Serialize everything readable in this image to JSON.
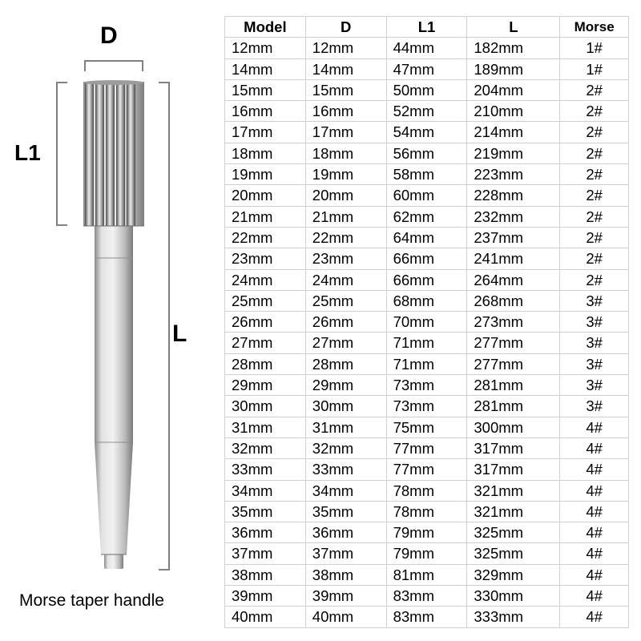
{
  "diagram": {
    "d_label": "D",
    "l1_label": "L1",
    "l_label": "L",
    "caption": "Morse taper handle",
    "colors": {
      "metal_light": "#d8d8d8",
      "metal_mid": "#b8b8b8",
      "metal_dark": "#808080",
      "flute_dark": "#5a5a5a",
      "flute_light": "#e8e8e8",
      "bracket": "#808080"
    }
  },
  "table": {
    "columns": [
      "Model",
      "D",
      "L1",
      "L",
      "Morse"
    ],
    "column_widths_pct": [
      20,
      20,
      20,
      23,
      17
    ],
    "header_fontsize": 18.5,
    "cell_fontsize": 18.5,
    "border_color": "#d0d0d0",
    "background_color": "#ffffff",
    "text_color": "#000000",
    "rows": [
      [
        "12mm",
        "12mm",
        "44mm",
        "182mm",
        "1#"
      ],
      [
        "14mm",
        "14mm",
        "47mm",
        "189mm",
        "1#"
      ],
      [
        "15mm",
        "15mm",
        "50mm",
        "204mm",
        "2#"
      ],
      [
        "16mm",
        "16mm",
        "52mm",
        "210mm",
        "2#"
      ],
      [
        "17mm",
        "17mm",
        "54mm",
        "214mm",
        "2#"
      ],
      [
        "18mm",
        "18mm",
        "56mm",
        "219mm",
        "2#"
      ],
      [
        "19mm",
        "19mm",
        "58mm",
        "223mm",
        "2#"
      ],
      [
        "20mm",
        "20mm",
        "60mm",
        "228mm",
        "2#"
      ],
      [
        "21mm",
        "21mm",
        "62mm",
        "232mm",
        "2#"
      ],
      [
        "22mm",
        "22mm",
        "64mm",
        "237mm",
        "2#"
      ],
      [
        "23mm",
        "23mm",
        "66mm",
        "241mm",
        "2#"
      ],
      [
        "24mm",
        "24mm",
        "66mm",
        "264mm",
        "2#"
      ],
      [
        "25mm",
        "25mm",
        "68mm",
        "268mm",
        "3#"
      ],
      [
        "26mm",
        "26mm",
        "70mm",
        "273mm",
        "3#"
      ],
      [
        "27mm",
        "27mm",
        "71mm",
        "277mm",
        "3#"
      ],
      [
        "28mm",
        "28mm",
        "71mm",
        "277mm",
        "3#"
      ],
      [
        "29mm",
        "29mm",
        "73mm",
        "281mm",
        "3#"
      ],
      [
        "30mm",
        "30mm",
        "73mm",
        "281mm",
        "3#"
      ],
      [
        "31mm",
        "31mm",
        "75mm",
        "300mm",
        "4#"
      ],
      [
        "32mm",
        "32mm",
        "77mm",
        "317mm",
        "4#"
      ],
      [
        "33mm",
        "33mm",
        "77mm",
        "317mm",
        "4#"
      ],
      [
        "34mm",
        "34mm",
        "78mm",
        "321mm",
        "4#"
      ],
      [
        "35mm",
        "35mm",
        "78mm",
        "321mm",
        "4#"
      ],
      [
        "36mm",
        "36mm",
        "79mm",
        "325mm",
        "4#"
      ],
      [
        "37mm",
        "37mm",
        "79mm",
        "325mm",
        "4#"
      ],
      [
        "38mm",
        "38mm",
        "81mm",
        "329mm",
        "4#"
      ],
      [
        "39mm",
        "39mm",
        "83mm",
        "330mm",
        "4#"
      ],
      [
        "40mm",
        "40mm",
        "83mm",
        "333mm",
        "4#"
      ]
    ]
  }
}
